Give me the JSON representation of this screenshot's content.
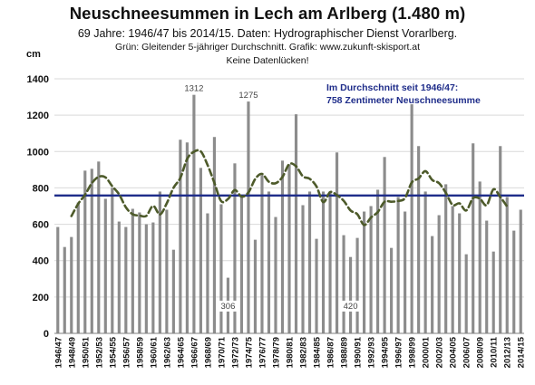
{
  "chart_data": {
    "type": "bar",
    "title": "Neuschneesummen in Lech am Arlberg (1.480 m)",
    "subtitle_lines": [
      "69 Jahre: 1946/47 bis 2014/15. Daten: Hydrographischer Dienst Vorarlberg.",
      "Grün: Gleitender 5-jähriger Durchschnitt. Grafik: www.zukunft-skisport.at",
      "Keine Datenlücken!"
    ],
    "ylabel": "cm",
    "ylim": [
      0,
      1400
    ],
    "yticks": [
      0,
      200,
      400,
      600,
      800,
      1000,
      1200,
      1400
    ],
    "grid": true,
    "categories": [
      "1946/47",
      "1947/48",
      "1948/49",
      "1949/50",
      "1950/51",
      "1951/52",
      "1952/53",
      "1953/54",
      "1954/55",
      "1955/56",
      "1956/57",
      "1957/58",
      "1958/59",
      "1959/60",
      "1960/61",
      "1961/62",
      "1962/63",
      "1963/64",
      "1964/65",
      "1965/66",
      "1966/67",
      "1967/68",
      "1968/69",
      "1969/70",
      "1970/71",
      "1971/72",
      "1972/73",
      "1973/74",
      "1974/75",
      "1975/76",
      "1976/77",
      "1977/78",
      "1978/79",
      "1979/80",
      "1980/81",
      "1981/82",
      "1982/83",
      "1983/84",
      "1984/85",
      "1985/86",
      "1986/87",
      "1987/88",
      "1988/89",
      "1989/90",
      "1990/91",
      "1991/92",
      "1992/93",
      "1993/94",
      "1994/95",
      "1995/96",
      "1996/97",
      "1997/98",
      "1998/99",
      "1999/00",
      "2000/01",
      "2001/02",
      "2002/03",
      "2003/04",
      "2004/05",
      "2005/06",
      "2006/07",
      "2007/08",
      "2008/09",
      "2009/10",
      "2010/11",
      "2011/12",
      "2012/13",
      "2013/14",
      "2014/15"
    ],
    "tick_labels": [
      "1946/47",
      "1948/49",
      "1950/51",
      "1952/53",
      "1954/55",
      "1956/57",
      "1958/59",
      "1960/61",
      "1962/63",
      "1964/65",
      "1966/67",
      "1968/69",
      "1970/71",
      "1972/73",
      "1974/75",
      "1976/77",
      "1978/79",
      "1980/81",
      "1982/83",
      "1984/85",
      "1986/87",
      "1988/89",
      "1990/91",
      "1992/93",
      "1994/95",
      "1996/97",
      "1998/99",
      "2000/01",
      "2002/03",
      "2004/05",
      "2006/07",
      "2008/09",
      "2010/11",
      "2012/13",
      "2014/15"
    ],
    "series": [
      {
        "kind": "bar",
        "color": "#8c8c8c",
        "values": [
          585,
          475,
          530,
          720,
          895,
          905,
          945,
          740,
          800,
          615,
          585,
          685,
          665,
          600,
          610,
          780,
          680,
          460,
          1065,
          1050,
          1312,
          910,
          660,
          1080,
          710,
          306,
          935,
          750,
          1275,
          515,
          870,
          780,
          640,
          950,
          930,
          1205,
          705,
          780,
          520,
          780,
          780,
          995,
          540,
          420,
          525,
          670,
          700,
          790,
          970,
          470,
          750,
          670,
          1260,
          1030,
          780,
          535,
          650,
          820,
          700,
          660,
          435,
          1045,
          835,
          620,
          450,
          1030,
          750,
          565,
          680
        ]
      },
      {
        "kind": "line",
        "style": "dashed",
        "color": "#4d5a2a",
        "values": [
          null,
          null,
          645,
          713,
          762,
          826,
          861,
          858,
          809,
          765,
          693,
          655,
          648,
          646,
          701,
          654,
          715,
          801,
          855,
          959,
          999,
          1001,
          926,
          828,
          727,
          739,
          788,
          752,
          775,
          849,
          877,
          834,
          826,
          860,
          931,
          919,
          864,
          850,
          808,
          722,
          777,
          760,
          729,
          676,
          655,
          596,
          637,
          667,
          724,
          724,
          728,
          744,
          830,
          852,
          892,
          844,
          826,
          773,
          706,
          715,
          676,
          744,
          741,
          705,
          792,
          750,
          698,
          null,
          null
        ]
      },
      {
        "kind": "hline",
        "value": 758,
        "color": "#1f2d8a"
      }
    ],
    "annotations": [
      {
        "text": "1312",
        "category": "1966/67",
        "value": 1312,
        "position": "above"
      },
      {
        "text": "1275",
        "category": "1974/75",
        "value": 1275,
        "position": "above"
      },
      {
        "text": "306",
        "category": "1971/72",
        "position": "low"
      },
      {
        "text": "420",
        "category": "1989/90",
        "position": "low"
      }
    ],
    "legend_box": {
      "lines": [
        "Im Durchschnitt seit 1946/47:",
        "758 Zentimeter Neuschneesumme"
      ],
      "color": "#1f2d8a",
      "placement": "top-right"
    }
  }
}
